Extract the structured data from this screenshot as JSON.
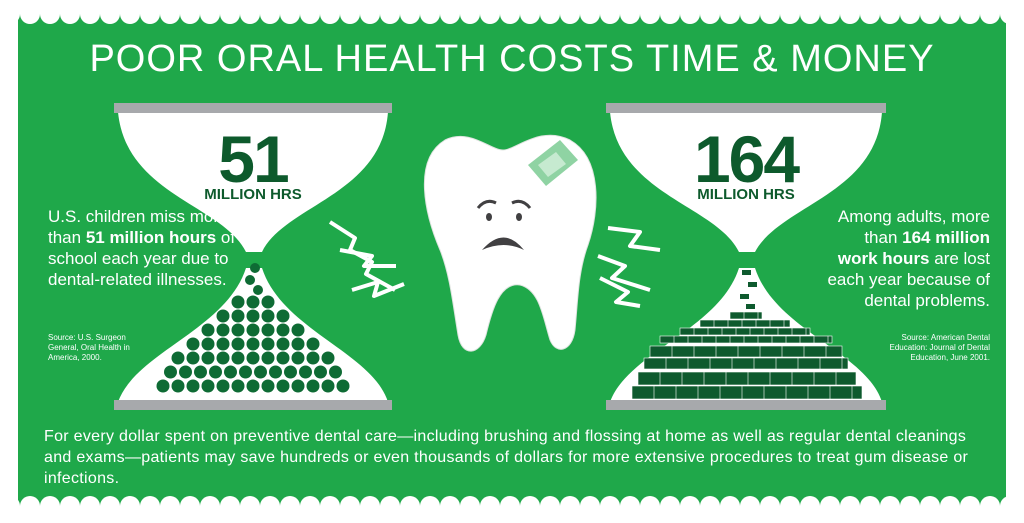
{
  "title": "POOR ORAL HEALTH COSTS TIME & MONEY",
  "left": {
    "number": "51",
    "unit": "MILLION HRS",
    "text": [
      "U.S. children miss more than ",
      "51 million hours",
      " of school each year due to dental-related illnesses."
    ],
    "source": "Source: U.S. Surgeon General, Oral Health in America, 2000."
  },
  "right": {
    "number": "164",
    "unit": "MILLION HRS",
    "text": [
      "Among adults, more than ",
      "164 million work hours",
      " are lost each year because of dental problems."
    ],
    "source": "Source: American Dental Education: Journal of Dental Education, June 2001."
  },
  "footer": "For every dollar spent on preventive dental care—including brushing and flossing at home as well as regular dental cleanings and exams—patients may save hundreds or even thousands of dollars for more extensive procedures to treat gum disease or infections."
}
